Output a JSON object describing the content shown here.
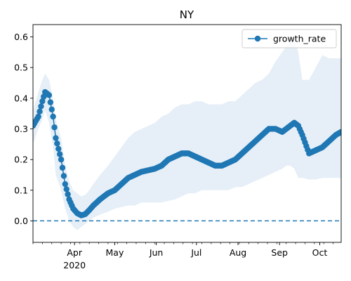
{
  "chart_data": {
    "type": "line",
    "title": "NY",
    "xlabel": "",
    "ylabel": "",
    "x_range": [
      "2020-03-01",
      "2020-10-17"
    ],
    "ylim": [
      -0.07,
      0.64
    ],
    "grid": false,
    "legend_position": "top-right",
    "x_tick_labels": [
      {
        "date": "2020-04-01",
        "label": "Apr",
        "sublabel": "2020"
      },
      {
        "date": "2020-05-01",
        "label": "May"
      },
      {
        "date": "2020-06-01",
        "label": "Jun"
      },
      {
        "date": "2020-07-01",
        "label": "Jul"
      },
      {
        "date": "2020-08-01",
        "label": "Aug"
      },
      {
        "date": "2020-09-01",
        "label": "Sep"
      },
      {
        "date": "2020-10-01",
        "label": "Oct"
      }
    ],
    "y_ticks": [
      0.0,
      0.1,
      0.2,
      0.3,
      0.4,
      0.5,
      0.6
    ],
    "y_tick_labels": [
      "0.0",
      "0.1",
      "0.2",
      "0.3",
      "0.4",
      "0.5",
      "0.6"
    ],
    "reference_line": {
      "y": 0.0,
      "style": "dashed"
    },
    "series": [
      {
        "name": "growth_rate",
        "color": "#1f77b4",
        "marker": "circle",
        "x": [
          "2020-03-01",
          "2020-03-05",
          "2020-03-08",
          "2020-03-10",
          "2020-03-13",
          "2020-03-16",
          "2020-03-18",
          "2020-03-22",
          "2020-03-25",
          "2020-03-28",
          "2020-03-31",
          "2020-04-03",
          "2020-04-06",
          "2020-04-09",
          "2020-04-12",
          "2020-04-15",
          "2020-04-20",
          "2020-04-26",
          "2020-05-01",
          "2020-05-06",
          "2020-05-11",
          "2020-05-16",
          "2020-05-21",
          "2020-05-26",
          "2020-05-31",
          "2020-06-05",
          "2020-06-10",
          "2020-06-15",
          "2020-06-20",
          "2020-06-25",
          "2020-06-30",
          "2020-07-05",
          "2020-07-10",
          "2020-07-15",
          "2020-07-20",
          "2020-07-25",
          "2020-07-30",
          "2020-08-04",
          "2020-08-09",
          "2020-08-14",
          "2020-08-19",
          "2020-08-24",
          "2020-08-29",
          "2020-09-03",
          "2020-09-06",
          "2020-09-09",
          "2020-09-12",
          "2020-09-15",
          "2020-09-18",
          "2020-09-23",
          "2020-09-28",
          "2020-10-03",
          "2020-10-08",
          "2020-10-13",
          "2020-10-17"
        ],
        "y": [
          0.31,
          0.34,
          0.39,
          0.42,
          0.41,
          0.34,
          0.27,
          0.2,
          0.12,
          0.07,
          0.04,
          0.025,
          0.018,
          0.022,
          0.035,
          0.05,
          0.07,
          0.09,
          0.1,
          0.12,
          0.14,
          0.15,
          0.16,
          0.165,
          0.17,
          0.18,
          0.2,
          0.21,
          0.22,
          0.22,
          0.21,
          0.2,
          0.19,
          0.18,
          0.18,
          0.19,
          0.2,
          0.22,
          0.24,
          0.26,
          0.28,
          0.3,
          0.3,
          0.29,
          0.3,
          0.31,
          0.32,
          0.31,
          0.28,
          0.22,
          0.23,
          0.24,
          0.26,
          0.28,
          0.29
        ],
        "lower": [
          0.25,
          0.3,
          0.33,
          0.36,
          0.32,
          0.24,
          0.15,
          0.1,
          0.04,
          0.0,
          -0.02,
          -0.03,
          -0.02,
          -0.01,
          0.0,
          0.01,
          0.02,
          0.03,
          0.04,
          0.045,
          0.05,
          0.05,
          0.06,
          0.06,
          0.06,
          0.06,
          0.065,
          0.07,
          0.08,
          0.09,
          0.09,
          0.1,
          0.1,
          0.1,
          0.1,
          0.1,
          0.11,
          0.11,
          0.12,
          0.13,
          0.14,
          0.15,
          0.16,
          0.17,
          0.18,
          0.18,
          0.17,
          0.14,
          0.14,
          0.135,
          0.135,
          0.14,
          0.14,
          0.14,
          0.14
        ],
        "upper": [
          0.36,
          0.42,
          0.46,
          0.48,
          0.46,
          0.4,
          0.33,
          0.27,
          0.18,
          0.13,
          0.1,
          0.09,
          0.08,
          0.085,
          0.1,
          0.12,
          0.15,
          0.18,
          0.21,
          0.24,
          0.27,
          0.29,
          0.3,
          0.31,
          0.32,
          0.34,
          0.35,
          0.37,
          0.38,
          0.38,
          0.39,
          0.39,
          0.38,
          0.38,
          0.38,
          0.39,
          0.39,
          0.41,
          0.43,
          0.45,
          0.46,
          0.48,
          0.52,
          0.55,
          0.57,
          0.59,
          0.6,
          0.55,
          0.46,
          0.46,
          0.5,
          0.54,
          0.53,
          0.53,
          0.53
        ]
      }
    ]
  }
}
